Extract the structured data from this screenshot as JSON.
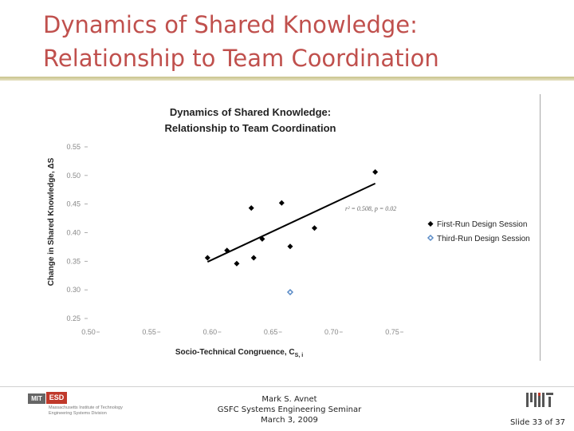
{
  "slide": {
    "title_line1": "Dynamics of Shared Knowledge:",
    "title_line2": "Relationship to Team Coordination",
    "colors": {
      "title": "#c0504d",
      "rule": "#c8c28a"
    }
  },
  "chart_data": {
    "type": "scatter",
    "title_line1": "Dynamics of Shared Knowledge:",
    "title_line2": "Relationship to Team Coordination",
    "xlabel": "Socio-Technical Congruence, C",
    "xlabel_subscript": "S, i",
    "ylabel": "Change in Shared Knowledge, ΔS",
    "xlim": [
      0.5,
      0.75
    ],
    "ylim": [
      0.25,
      0.55
    ],
    "x_ticks": [
      "0.50",
      "0.55",
      "0.60",
      "0.65",
      "0.70",
      "0.75"
    ],
    "y_ticks": [
      "0.55",
      "0.50",
      "0.45",
      "0.40",
      "0.35",
      "0.30",
      "0.25"
    ],
    "grid": false,
    "legend_position": "right",
    "series": [
      {
        "name": "First-Run Design Session",
        "marker": "diamond-filled",
        "color": "#000000",
        "points": [
          {
            "x": 0.598,
            "y": 0.356
          },
          {
            "x": 0.614,
            "y": 0.369
          },
          {
            "x": 0.622,
            "y": 0.346
          },
          {
            "x": 0.634,
            "y": 0.443
          },
          {
            "x": 0.636,
            "y": 0.356
          },
          {
            "x": 0.643,
            "y": 0.389
          },
          {
            "x": 0.659,
            "y": 0.452
          },
          {
            "x": 0.666,
            "y": 0.376
          },
          {
            "x": 0.686,
            "y": 0.408
          },
          {
            "x": 0.736,
            "y": 0.506
          }
        ]
      },
      {
        "name": "Third-Run Design Session",
        "marker": "diamond-open",
        "color": "#5b8cc7",
        "points": [
          {
            "x": 0.666,
            "y": 0.296
          }
        ]
      }
    ],
    "trendline": {
      "x": [
        0.598,
        0.736
      ],
      "y": [
        0.349,
        0.486
      ],
      "color": "#000000"
    },
    "annotation": "r² = 0.508, p = 0.02"
  },
  "footer": {
    "logo_mit": "MIT",
    "logo_esd": "ESD",
    "logo_institute": "Massachusetts Institute of Technology",
    "logo_division": "Engineering Systems Division",
    "author": "Mark S. Avnet",
    "event": "GSFC Systems Engineering Seminar",
    "date": "March 3, 2009",
    "slide_number": "Slide 33 of 37"
  }
}
